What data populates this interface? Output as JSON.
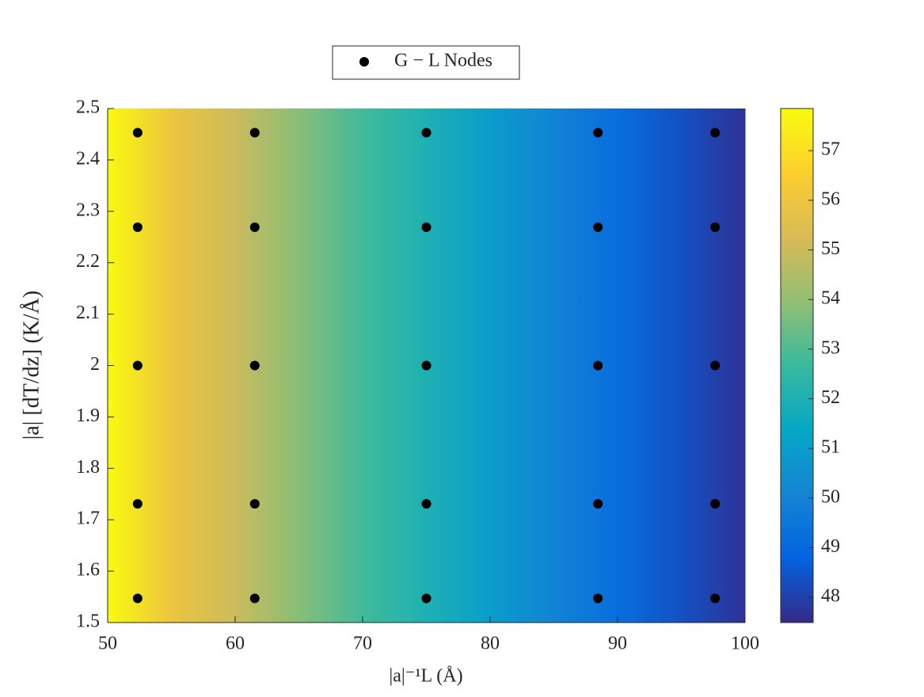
{
  "chart_data": {
    "type": "contour",
    "xlabel": "|a|⁻¹L (Å)",
    "ylabel": "|a| [dT/dz] (K/Å)",
    "xlim": [
      50,
      100
    ],
    "xticks": [
      50,
      60,
      70,
      80,
      90,
      100
    ],
    "ylim": [
      1.5,
      2.5
    ],
    "yticks": [
      1.5,
      1.6,
      1.7,
      1.8,
      1.9,
      2,
      2.1,
      2.2,
      2.3,
      2.4,
      2.5
    ],
    "field": {
      "x": [
        50,
        55,
        60,
        65,
        70,
        75,
        80,
        85,
        90,
        95,
        100
      ],
      "y": [
        1.5,
        2,
        2.5
      ],
      "z": [
        [
          57.8,
          56.0,
          55.0,
          53.8,
          52.8,
          52.0,
          51.0,
          50.0,
          49.2,
          48.4,
          47.8
        ],
        [
          57.8,
          56.0,
          55.0,
          53.8,
          52.8,
          52.0,
          51.0,
          50.0,
          49.2,
          48.3,
          47.55
        ],
        [
          57.8,
          56.0,
          55.0,
          53.8,
          52.8,
          52.0,
          51.0,
          50.0,
          49.2,
          48.4,
          47.8
        ]
      ]
    },
    "colormap": [
      "#352a87",
      "#0363e1",
      "#1485d4",
      "#06a7c6",
      "#38b99e",
      "#92bf73",
      "#d9ba56",
      "#fcce2e",
      "#f9fb0e"
    ],
    "clim": [
      47.49,
      57.85
    ],
    "cticks": [
      48,
      49,
      50,
      51,
      52,
      53,
      54,
      55,
      56,
      57
    ],
    "series": [
      {
        "name": "G − L Nodes",
        "color": "#000000",
        "x": [
          52.35,
          61.54,
          75,
          88.46,
          97.65,
          52.35,
          61.54,
          75,
          88.46,
          97.65,
          52.35,
          61.54,
          75,
          88.46,
          97.65,
          52.35,
          61.54,
          75,
          88.46,
          97.65,
          52.35,
          61.54,
          75,
          88.46,
          97.65
        ],
        "y": [
          1.547,
          1.547,
          1.547,
          1.547,
          1.547,
          1.731,
          1.731,
          1.731,
          1.731,
          1.731,
          2,
          2,
          2,
          2,
          2,
          2.269,
          2.269,
          2.269,
          2.269,
          2.269,
          2.453,
          2.453,
          2.453,
          2.453,
          2.453
        ]
      }
    ],
    "legend": "top"
  }
}
